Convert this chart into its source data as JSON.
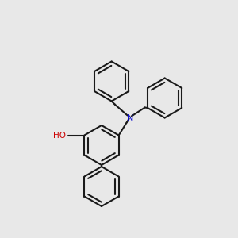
{
  "background_color": "#e8e8e8",
  "bond_color": "#1a1a1a",
  "n_color": "#0000cc",
  "o_color": "#cc0000",
  "lw": 1.5,
  "ring_r": 25,
  "figsize": [
    3.0,
    3.0
  ],
  "dpi": 100
}
